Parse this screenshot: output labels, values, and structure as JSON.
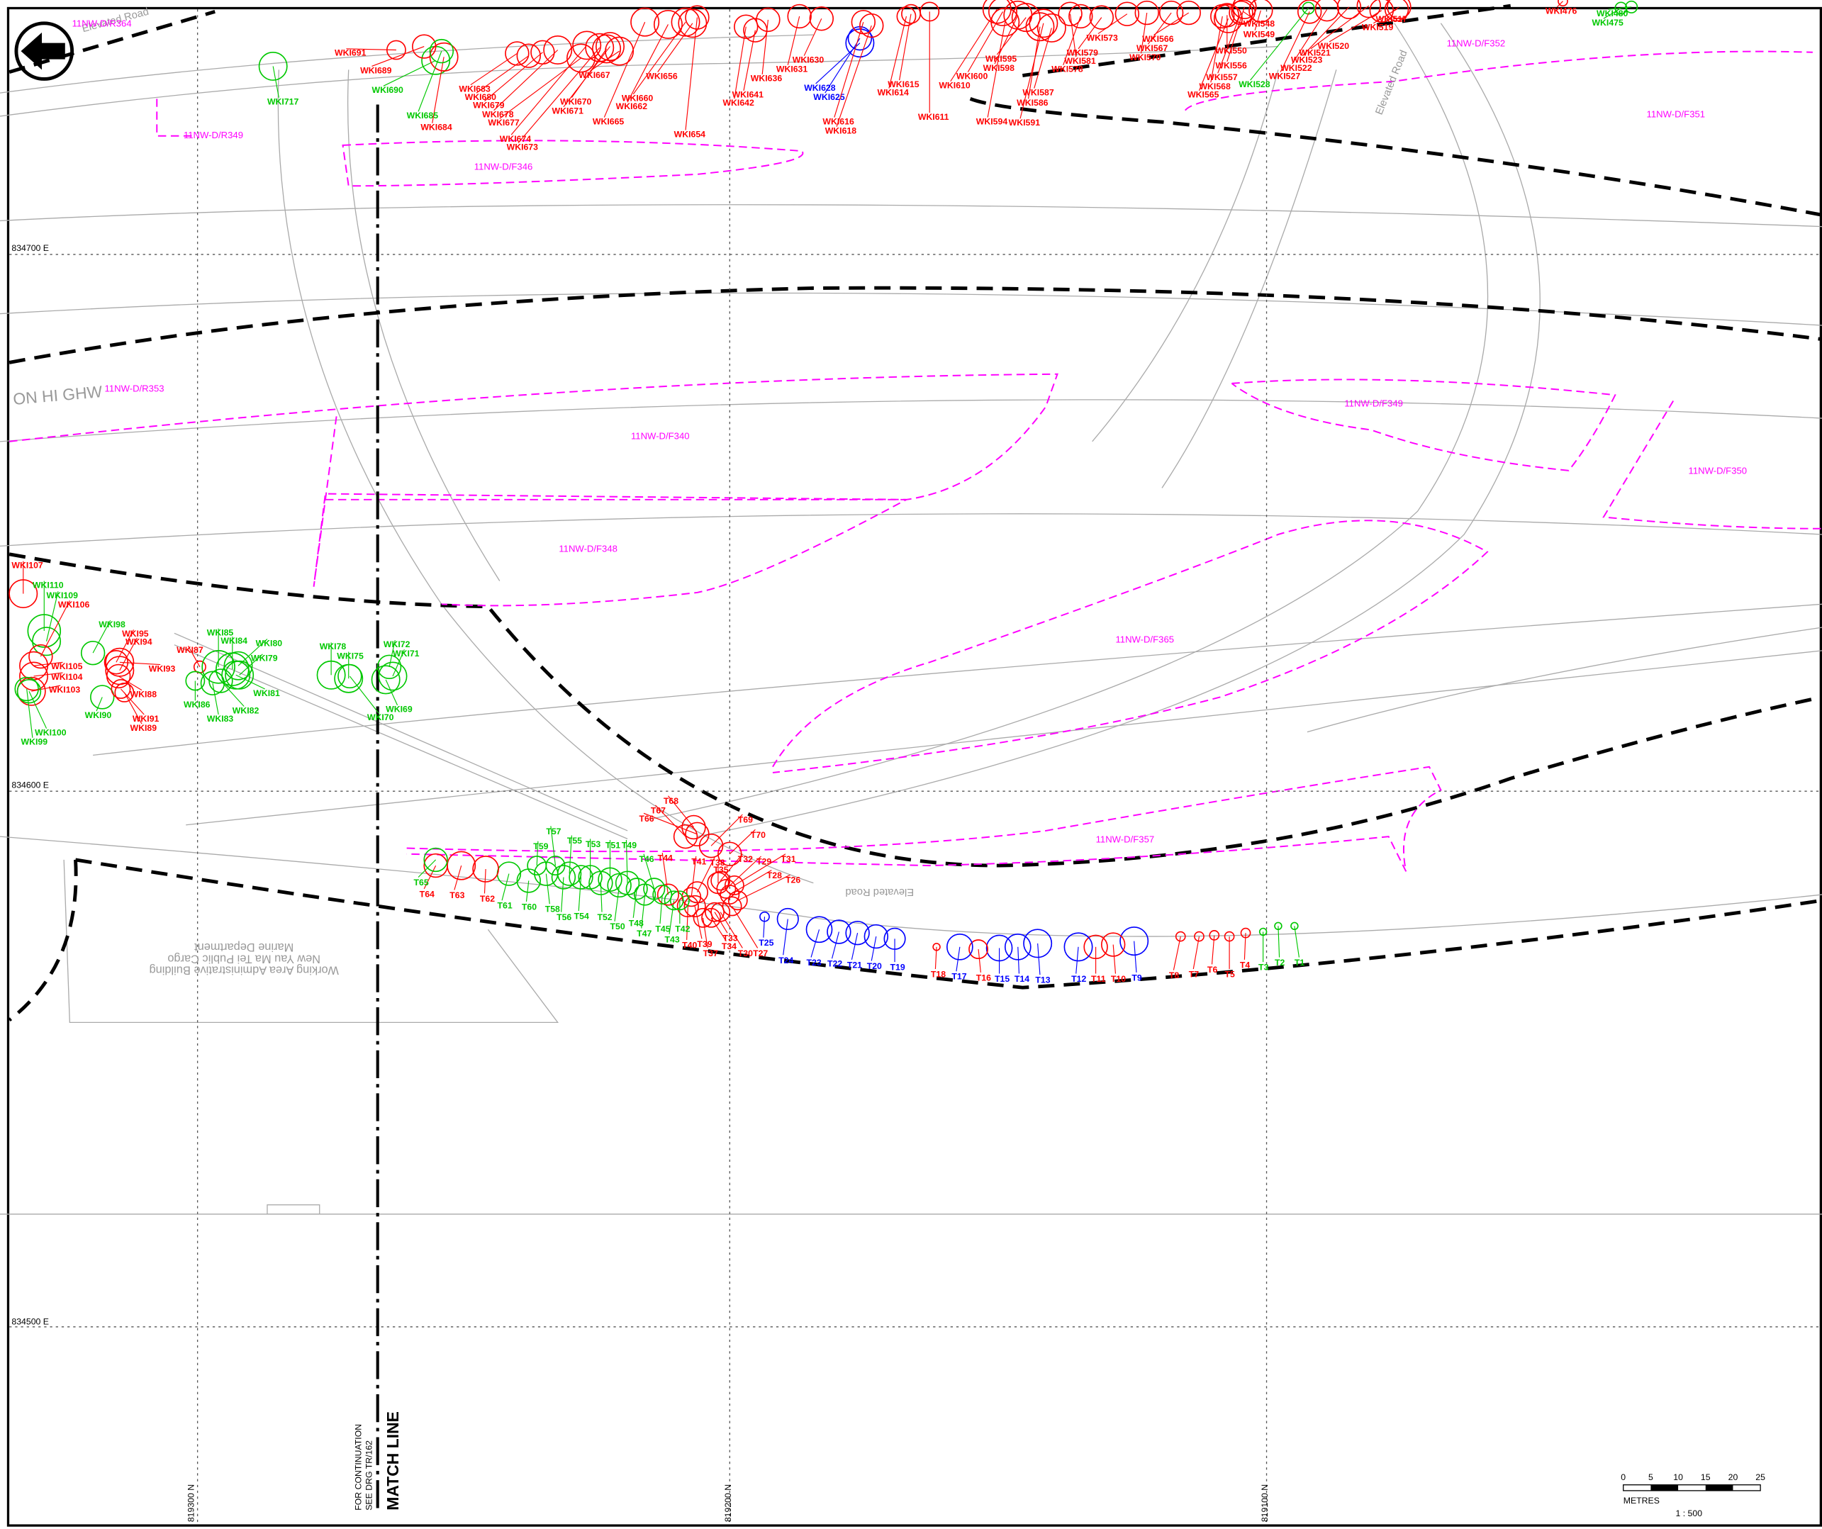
{
  "grid": {
    "eastings": [
      "834700 E",
      "834600 E",
      "834500 E"
    ],
    "northings": [
      "819300 N",
      "819200 N",
      "819100 N"
    ]
  },
  "match_line": {
    "note_1": "FOR CONTINUATION",
    "note_2": "SEE DRG TR/162",
    "title": "MATCH LINE"
  },
  "scale": {
    "ticks": [
      "0",
      "5",
      "10",
      "15",
      "20",
      "25"
    ],
    "unit": "METRES",
    "ratio": "1 : 500"
  },
  "colors": {
    "red": "#ff0000",
    "green": "#00c800",
    "blue": "#0000ff",
    "zone": "#ff00ff",
    "road": "#999999"
  },
  "roads": [
    "Elevated Road",
    "Elevated Road",
    "Elevated Road",
    "ON HI GHW",
    "Marine Department",
    "New Yau Ma Tei Public Cargo",
    "Working Area Administrative Building"
  ],
  "zones": [
    "11NW-D/R364",
    "11NW-D/R349",
    "11NW-D/F346",
    "11NW-D/F352",
    "11NW-D/F351",
    "11NW-D/R353",
    "11NW-D/F340",
    "11NW-D/F349",
    "11NW-D/F350",
    "11NW-D/F348",
    "11NW-D/F365",
    "11NW-D/F357"
  ],
  "trees": [
    {
      "label": "T1",
      "color": "green"
    },
    {
      "label": "T2",
      "color": "green"
    },
    {
      "label": "T3",
      "color": "green"
    },
    {
      "label": "T4",
      "color": "red"
    },
    {
      "label": "T5",
      "color": "red"
    },
    {
      "label": "T6",
      "color": "red"
    },
    {
      "label": "T7",
      "color": "red"
    },
    {
      "label": "T8",
      "color": "red"
    },
    {
      "label": "T9",
      "color": "blue"
    },
    {
      "label": "T10",
      "color": "red"
    },
    {
      "label": "T11",
      "color": "red"
    },
    {
      "label": "T12",
      "color": "blue"
    },
    {
      "label": "T13",
      "color": "blue"
    },
    {
      "label": "T14",
      "color": "blue"
    },
    {
      "label": "T15",
      "color": "blue"
    },
    {
      "label": "T16",
      "color": "red"
    },
    {
      "label": "T17",
      "color": "blue"
    },
    {
      "label": "T18",
      "color": "red"
    },
    {
      "label": "T19",
      "color": "blue"
    },
    {
      "label": "T20",
      "color": "blue"
    },
    {
      "label": "T21",
      "color": "blue"
    },
    {
      "label": "T22",
      "color": "blue"
    },
    {
      "label": "T23",
      "color": "blue"
    },
    {
      "label": "T24",
      "color": "blue"
    },
    {
      "label": "T25",
      "color": "blue"
    },
    {
      "label": "T26",
      "color": "red"
    },
    {
      "label": "T27",
      "color": "red"
    },
    {
      "label": "T28",
      "color": "red"
    },
    {
      "label": "T29",
      "color": "red"
    },
    {
      "label": "T30",
      "color": "red"
    },
    {
      "label": "T31",
      "color": "red"
    },
    {
      "label": "T32",
      "color": "red"
    },
    {
      "label": "T33",
      "color": "red"
    },
    {
      "label": "T34",
      "color": "red"
    },
    {
      "label": "T35",
      "color": "red"
    },
    {
      "label": "T37",
      "color": "red"
    },
    {
      "label": "T38",
      "color": "red"
    },
    {
      "label": "T39",
      "color": "red"
    },
    {
      "label": "T40",
      "color": "red"
    },
    {
      "label": "T41",
      "color": "red"
    },
    {
      "label": "T42",
      "color": "green"
    },
    {
      "label": "T43",
      "color": "green"
    },
    {
      "label": "T44",
      "color": "red"
    },
    {
      "label": "T45",
      "color": "green"
    },
    {
      "label": "T46",
      "color": "green"
    },
    {
      "label": "T47",
      "color": "green"
    },
    {
      "label": "T48",
      "color": "green"
    },
    {
      "label": "T49",
      "color": "green"
    },
    {
      "label": "T50",
      "color": "green"
    },
    {
      "label": "T51",
      "color": "green"
    },
    {
      "label": "T52",
      "color": "green"
    },
    {
      "label": "T53",
      "color": "green"
    },
    {
      "label": "T54",
      "color": "green"
    },
    {
      "label": "T55",
      "color": "green"
    },
    {
      "label": "T56",
      "color": "green"
    },
    {
      "label": "T57",
      "color": "green"
    },
    {
      "label": "T58",
      "color": "green"
    },
    {
      "label": "T59",
      "color": "green"
    },
    {
      "label": "T60",
      "color": "green"
    },
    {
      "label": "T61",
      "color": "green"
    },
    {
      "label": "T62",
      "color": "red"
    },
    {
      "label": "T63",
      "color": "red"
    },
    {
      "label": "T64",
      "color": "red"
    },
    {
      "label": "T65",
      "color": "green"
    },
    {
      "label": "T66",
      "color": "red"
    },
    {
      "label": "T67",
      "color": "red"
    },
    {
      "label": "T68",
      "color": "red"
    },
    {
      "label": "T69",
      "color": "red"
    },
    {
      "label": "T70",
      "color": "red"
    }
  ],
  "wki_trees": [
    {
      "label": "WKI107",
      "color": "red"
    },
    {
      "label": "WKI110",
      "color": "green"
    },
    {
      "label": "WKI109",
      "color": "green"
    },
    {
      "label": "WKI106",
      "color": "red"
    },
    {
      "label": "WKI98",
      "color": "green"
    },
    {
      "label": "WKI95",
      "color": "red"
    },
    {
      "label": "WKI94",
      "color": "red"
    },
    {
      "label": "WKI87",
      "color": "red"
    },
    {
      "label": "WKI93",
      "color": "red"
    },
    {
      "label": "WKI85",
      "color": "green"
    },
    {
      "label": "WKI84",
      "color": "green"
    },
    {
      "label": "WKI80",
      "color": "green"
    },
    {
      "label": "WKI79",
      "color": "green"
    },
    {
      "label": "WKI78",
      "color": "green"
    },
    {
      "label": "WKI75",
      "color": "green"
    },
    {
      "label": "WKI72",
      "color": "green"
    },
    {
      "label": "WKI71",
      "color": "green"
    },
    {
      "label": "WKI81",
      "color": "green"
    },
    {
      "label": "WKI82",
      "color": "green"
    },
    {
      "label": "WKI83",
      "color": "green"
    },
    {
      "label": "WKI86",
      "color": "green"
    },
    {
      "label": "WKI88",
      "color": "red"
    },
    {
      "label": "WKI90",
      "color": "green"
    },
    {
      "label": "WKI91",
      "color": "red"
    },
    {
      "label": "WKI89",
      "color": "red"
    },
    {
      "label": "WKI69",
      "color": "green"
    },
    {
      "label": "WKI70",
      "color": "green"
    },
    {
      "label": "WKI105",
      "color": "red"
    },
    {
      "label": "WKI104",
      "color": "red"
    },
    {
      "label": "WKI103",
      "color": "red"
    },
    {
      "label": "WKI100",
      "color": "green"
    },
    {
      "label": "WKI99",
      "color": "green"
    },
    {
      "label": "WKI691",
      "color": "red"
    },
    {
      "label": "WKI717",
      "color": "green"
    },
    {
      "label": "WKI690",
      "color": "green"
    },
    {
      "label": "WKI689",
      "color": "red"
    },
    {
      "label": "WKI684",
      "color": "red"
    },
    {
      "label": "WKI685",
      "color": "green"
    },
    {
      "label": "WKI683",
      "color": "red"
    },
    {
      "label": "WKI680",
      "color": "red"
    },
    {
      "label": "WKI679",
      "color": "red"
    },
    {
      "label": "WKI678",
      "color": "red"
    },
    {
      "label": "WKI677",
      "color": "red"
    },
    {
      "label": "WKI674",
      "color": "red"
    },
    {
      "label": "WKI673",
      "color": "red"
    },
    {
      "label": "WKI670",
      "color": "red"
    },
    {
      "label": "WKI671",
      "color": "red"
    },
    {
      "label": "WKI667",
      "color": "red"
    },
    {
      "label": "WKI665",
      "color": "red"
    },
    {
      "label": "WKI662",
      "color": "red"
    },
    {
      "label": "WKI660",
      "color": "red"
    },
    {
      "label": "WKI656",
      "color": "red"
    },
    {
      "label": "WKI654",
      "color": "red"
    },
    {
      "label": "WKI641",
      "color": "red"
    },
    {
      "label": "WKI642",
      "color": "red"
    },
    {
      "label": "WKI636",
      "color": "red"
    },
    {
      "label": "WKI631",
      "color": "red"
    },
    {
      "label": "WKI630",
      "color": "red"
    },
    {
      "label": "WKI628",
      "color": "blue"
    },
    {
      "label": "WKI625",
      "color": "blue"
    },
    {
      "label": "WKI616",
      "color": "red"
    },
    {
      "label": "WKI618",
      "color": "red"
    },
    {
      "label": "WKI615",
      "color": "red"
    },
    {
      "label": "WKI614",
      "color": "red"
    },
    {
      "label": "WKI611",
      "color": "red"
    },
    {
      "label": "WKI610",
      "color": "red"
    },
    {
      "label": "WKI600",
      "color": "red"
    },
    {
      "label": "WKI598",
      "color": "red"
    },
    {
      "label": "WKI595",
      "color": "red"
    },
    {
      "label": "WKI594",
      "color": "red"
    },
    {
      "label": "WKI591",
      "color": "red"
    },
    {
      "label": "WKI586",
      "color": "red"
    },
    {
      "label": "WKI587",
      "color": "red"
    },
    {
      "label": "WKI578",
      "color": "red"
    },
    {
      "label": "WKI579",
      "color": "red"
    },
    {
      "label": "WKI581",
      "color": "red"
    },
    {
      "label": "WKI573",
      "color": "red"
    },
    {
      "label": "WKI570",
      "color": "red"
    },
    {
      "label": "WKI567",
      "color": "red"
    },
    {
      "label": "WKI566",
      "color": "red"
    },
    {
      "label": "WKI565",
      "color": "red"
    },
    {
      "label": "WKI568",
      "color": "red"
    },
    {
      "label": "WKI557",
      "color": "red"
    },
    {
      "label": "WKI556",
      "color": "red"
    },
    {
      "label": "WKI550",
      "color": "red"
    },
    {
      "label": "WKI549",
      "color": "red"
    },
    {
      "label": "WKI548",
      "color": "red"
    },
    {
      "label": "WKI528",
      "color": "green"
    },
    {
      "label": "WKI527",
      "color": "red"
    },
    {
      "label": "WKI522",
      "color": "red"
    },
    {
      "label": "WKI523",
      "color": "red"
    },
    {
      "label": "WKI521",
      "color": "red"
    },
    {
      "label": "WKI520",
      "color": "red"
    },
    {
      "label": "WKI519",
      "color": "red"
    },
    {
      "label": "WKI517",
      "color": "red"
    },
    {
      "label": "WKI480",
      "color": "green"
    },
    {
      "label": "WKI475",
      "color": "green"
    },
    {
      "label": "WKI476",
      "color": "red"
    }
  ]
}
